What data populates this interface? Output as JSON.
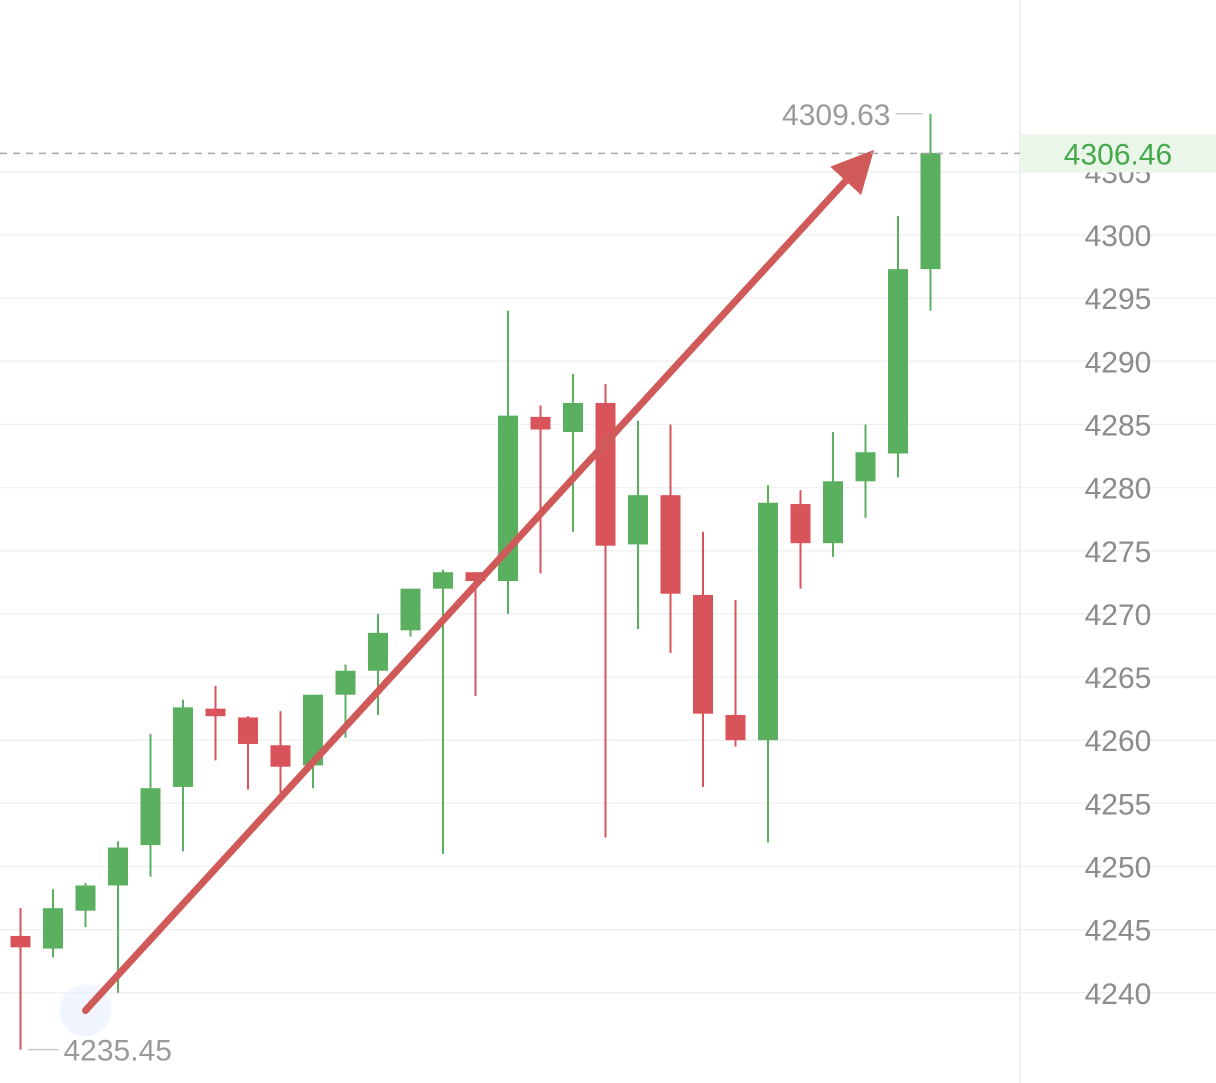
{
  "chart_data": {
    "type": "candlestick",
    "ylim": [
      4235,
      4313
    ],
    "y_ticks": [
      4305,
      4300,
      4295,
      4290,
      4285,
      4280,
      4275,
      4270,
      4265,
      4260,
      4255,
      4250,
      4245,
      4240
    ],
    "grid": true,
    "last_price": "4306.46",
    "high_label": "4309.63",
    "low_label": "4235.45",
    "up_color": "#5bb05f",
    "down_color": "#d9535b",
    "arrow_color": "#d05a5a",
    "arrow": {
      "from_index": 2,
      "from_price": 4238.6,
      "to_index": 26,
      "to_price": 4306
    },
    "candles": [
      {
        "o": 4244.5,
        "h": 4246.7,
        "l": 4235.5,
        "c": 4243.6
      },
      {
        "o": 4243.5,
        "h": 4248.2,
        "l": 4242.8,
        "c": 4246.7
      },
      {
        "o": 4246.5,
        "h": 4248.7,
        "l": 4245.2,
        "c": 4248.5
      },
      {
        "o": 4248.5,
        "h": 4252.0,
        "l": 4240.0,
        "c": 4251.5
      },
      {
        "o": 4251.7,
        "h": 4260.5,
        "l": 4249.2,
        "c": 4256.2
      },
      {
        "o": 4256.3,
        "h": 4263.2,
        "l": 4251.2,
        "c": 4262.6
      },
      {
        "o": 4262.5,
        "h": 4264.3,
        "l": 4258.4,
        "c": 4261.9
      },
      {
        "o": 4261.8,
        "h": 4261.9,
        "l": 4256.1,
        "c": 4259.7
      },
      {
        "o": 4259.6,
        "h": 4262.3,
        "l": 4255.6,
        "c": 4257.9
      },
      {
        "o": 4258.0,
        "h": 4263.6,
        "l": 4256.2,
        "c": 4263.6
      },
      {
        "o": 4263.6,
        "h": 4266.0,
        "l": 4260.2,
        "c": 4265.5
      },
      {
        "o": 4265.5,
        "h": 4270.0,
        "l": 4262.0,
        "c": 4268.5
      },
      {
        "o": 4268.7,
        "h": 4272.0,
        "l": 4268.2,
        "c": 4272.0
      },
      {
        "o": 4272.0,
        "h": 4273.5,
        "l": 4251.0,
        "c": 4273.3
      },
      {
        "o": 4273.3,
        "h": 4273.3,
        "l": 4263.5,
        "c": 4272.6
      },
      {
        "o": 4272.6,
        "h": 4294.0,
        "l": 4270.0,
        "c": 4285.7
      },
      {
        "o": 4285.6,
        "h": 4286.5,
        "l": 4273.2,
        "c": 4284.6
      },
      {
        "o": 4284.4,
        "h": 4289.0,
        "l": 4276.5,
        "c": 4286.7
      },
      {
        "o": 4286.7,
        "h": 4288.2,
        "l": 4252.3,
        "c": 4275.4
      },
      {
        "o": 4275.5,
        "h": 4285.3,
        "l": 4268.8,
        "c": 4279.4
      },
      {
        "o": 4279.4,
        "h": 4285.0,
        "l": 4266.9,
        "c": 4271.6
      },
      {
        "o": 4271.5,
        "h": 4276.5,
        "l": 4256.3,
        "c": 4262.1
      },
      {
        "o": 4262.0,
        "h": 4271.1,
        "l": 4259.5,
        "c": 4260.0
      },
      {
        "o": 4260.0,
        "h": 4280.2,
        "l": 4251.9,
        "c": 4278.8
      },
      {
        "o": 4278.7,
        "h": 4279.8,
        "l": 4272.0,
        "c": 4275.6
      },
      {
        "o": 4275.6,
        "h": 4284.4,
        "l": 4274.5,
        "c": 4280.5
      },
      {
        "o": 4280.5,
        "h": 4285.0,
        "l": 4277.6,
        "c": 4282.8
      },
      {
        "o": 4282.7,
        "h": 4301.5,
        "l": 4280.8,
        "c": 4297.3
      },
      {
        "o": 4297.3,
        "h": 4309.6,
        "l": 4294.0,
        "c": 4306.5
      }
    ]
  }
}
